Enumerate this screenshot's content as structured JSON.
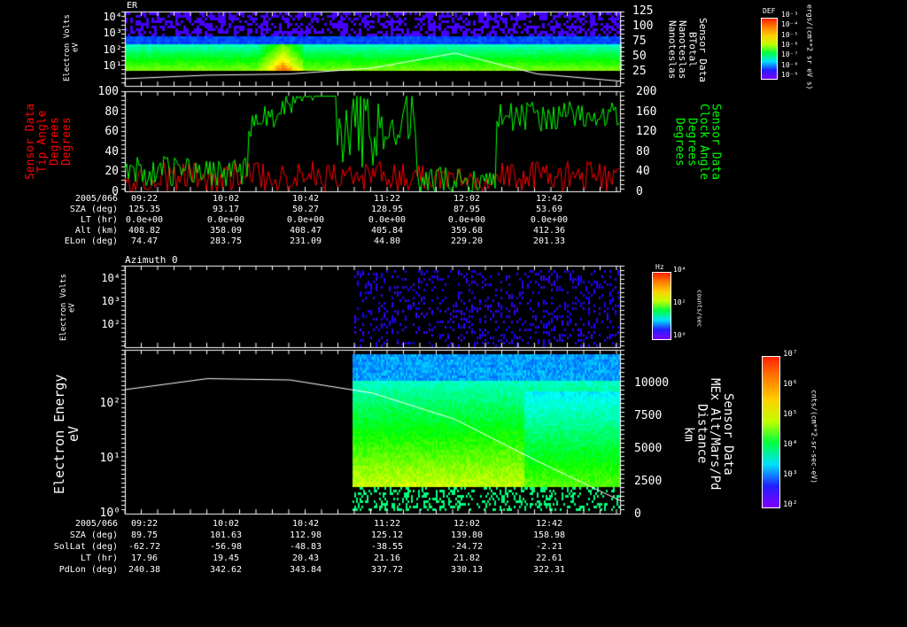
{
  "panel1": {
    "title": "ER",
    "ylabel_left": "Electron Volts\neV",
    "ylabel_right": "Sensor Data\nBTotal\nNanoteslas\nNanoteslas",
    "left_ticks": [
      "10¹",
      "10²",
      "10³",
      "10⁴"
    ],
    "right_ticks": [
      "25",
      "50",
      "75",
      "100",
      "125"
    ],
    "colorbar": {
      "title": "DEF",
      "ticks": [
        "10⁻³",
        "10⁻⁴",
        "10⁻⁵",
        "10⁻⁶",
        "10⁻⁷",
        "10⁻⁸",
        "10⁻⁹"
      ],
      "unit": "ergs/(cm**2 sr eV s)"
    }
  },
  "panel2": {
    "ylabel_left": "Sensor Data\nTip Angle\nDegrees\nDegrees",
    "ylabel_right": "Sensor Data\nClock Angle\nDegrees\nDegrees",
    "left_ticks": [
      "0",
      "20",
      "40",
      "60",
      "80",
      "100"
    ],
    "right_ticks": [
      "0",
      "40",
      "80",
      "120",
      "160",
      "200"
    ],
    "left_color": "#ff0000",
    "right_color": "#00ff00"
  },
  "table1": {
    "header": "2005/066",
    "times": [
      "09:22",
      "10:02",
      "10:42",
      "11:22",
      "12:02",
      "12:42"
    ],
    "rows": [
      {
        "label": "SZA (deg)",
        "values": [
          "125.35",
          "93.17",
          "50.27",
          "128.95",
          "87.95",
          "53.69"
        ]
      },
      {
        "label": "LT (hr)",
        "values": [
          "0.0e+00",
          "0.0e+00",
          "0.0e+00",
          "0.0e+00",
          "0.0e+00",
          "0.0e+00"
        ]
      },
      {
        "label": "Alt (km)",
        "values": [
          "408.82",
          "358.09",
          "408.47",
          "405.84",
          "359.68",
          "412.36"
        ]
      },
      {
        "label": "ELon (deg)",
        "values": [
          "74.47",
          "283.75",
          "231.09",
          "44.80",
          "229.20",
          "201.33"
        ]
      }
    ]
  },
  "panel3": {
    "title": "Azimuth 0",
    "ylabel_left": "Electron Volts\neV",
    "left_ticks": [
      "10²",
      "10³",
      "10⁴"
    ],
    "colorbar": {
      "title": "Hz",
      "ticks": [
        "10⁴",
        "10²",
        "10⁰"
      ],
      "unit": "counts/sec"
    }
  },
  "panel4": {
    "ylabel_left": "Electron Energy\neV",
    "ylabel_right": "Sensor Data\nMEx Alt/Mars/Pd\nDistance\nkm",
    "left_ticks": [
      "10⁰",
      "10¹",
      "10²"
    ],
    "right_ticks": [
      "0",
      "2500",
      "5000",
      "7500",
      "10000"
    ],
    "colorbar": {
      "ticks": [
        "10⁷",
        "10⁶",
        "10⁵",
        "10⁴",
        "10³",
        "10²"
      ],
      "unit": "cnts/(cm**2-sr-sec-eV)"
    }
  },
  "table2": {
    "header": "2005/066",
    "times": [
      "09:22",
      "10:02",
      "10:42",
      "11:22",
      "12:02",
      "12:42"
    ],
    "rows": [
      {
        "label": "SZA (deg)",
        "values": [
          "89.75",
          "101.63",
          "112.98",
          "125.12",
          "139.80",
          "158.98"
        ]
      },
      {
        "label": "SolLat (deg)",
        "values": [
          "-62.72",
          "-56.98",
          "-48.83",
          "-38.55",
          "-24.72",
          "-2.21"
        ]
      },
      {
        "label": "LT (hr)",
        "values": [
          "17.96",
          "19.45",
          "20.43",
          "21.16",
          "21.82",
          "22.61"
        ]
      },
      {
        "label": "PdLon (deg)",
        "values": [
          "240.38",
          "342.62",
          "343.84",
          "337.72",
          "330.13",
          "322.31"
        ]
      }
    ]
  },
  "chart_data": [
    {
      "type": "heatmap",
      "title": "ER",
      "x_range": [
        "09:22",
        "13:23"
      ],
      "ylabel": "Electron Volts eV",
      "yscale": "log",
      "ylim": [
        3,
        20000
      ],
      "overlay": {
        "name": "BTotal",
        "unit": "Nanoteslas",
        "ylim": [
          0,
          125
        ],
        "x_min": [
          0,
          40,
          80,
          120,
          160,
          200,
          240
        ],
        "values": [
          12,
          18,
          20,
          30,
          55,
          20,
          8
        ]
      }
    },
    {
      "type": "line",
      "x_range": [
        "09:22",
        "13:23"
      ],
      "series": [
        {
          "name": "Tip Angle",
          "color": "#ff0000",
          "ylim": [
            0,
            100
          ]
        },
        {
          "name": "Clock Angle",
          "color": "#00ff00",
          "ylim": [
            0,
            200
          ]
        }
      ]
    },
    {
      "type": "heatmap",
      "title": "Azimuth 0",
      "ylabel": "Electron Volts eV",
      "yscale": "log",
      "ylim": [
        10,
        20000
      ],
      "unit": "counts/sec"
    },
    {
      "type": "heatmap",
      "ylabel": "Electron Energy eV",
      "yscale": "log",
      "ylim": [
        1,
        500
      ],
      "overlay": {
        "name": "MEx Alt/Mars/Pd Distance",
        "unit": "km",
        "ylim": [
          0,
          12500
        ],
        "x_min": [
          0,
          40,
          80,
          120,
          160,
          200,
          240
        ],
        "values": [
          9460,
          10300,
          10200,
          9200,
          7200,
          4000,
          1000
        ]
      }
    }
  ]
}
